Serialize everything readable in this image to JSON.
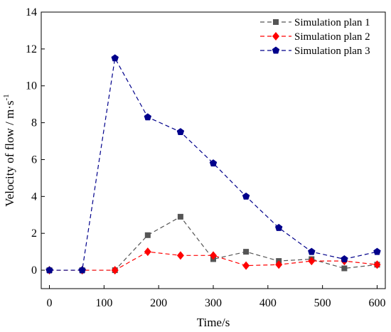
{
  "chart_data": {
    "type": "line",
    "title": "",
    "xlabel": "Time/s",
    "ylabel_parts": {
      "main": "Velocity of  flow / m·s",
      "sup": "-1"
    },
    "xlim": [
      -15,
      615
    ],
    "ylim": [
      -1,
      14
    ],
    "xticks": [
      0,
      100,
      200,
      300,
      400,
      500,
      600
    ],
    "yticks": [
      0,
      2,
      4,
      6,
      8,
      10,
      12,
      14
    ],
    "legend_position": "top-right",
    "series": [
      {
        "name": "Simulation plan 1",
        "color": "#555555",
        "marker": "square",
        "x": [
          0,
          60,
          120,
          180,
          240,
          300,
          360,
          420,
          480,
          540,
          600
        ],
        "y": [
          0,
          0,
          0,
          1.9,
          2.9,
          0.6,
          1.0,
          0.5,
          0.6,
          0.1,
          0.3
        ]
      },
      {
        "name": "Simulation plan 2",
        "color": "#ff0000",
        "marker": "diamond",
        "x": [
          0,
          60,
          120,
          180,
          240,
          300,
          360,
          420,
          480,
          540,
          600
        ],
        "y": [
          0,
          0,
          0,
          1.0,
          0.8,
          0.8,
          0.25,
          0.3,
          0.5,
          0.5,
          0.3
        ]
      },
      {
        "name": "Simulation plan 3",
        "color": "#00008b",
        "marker": "pentagon",
        "x": [
          0,
          60,
          120,
          180,
          240,
          300,
          360,
          420,
          480,
          540,
          600
        ],
        "y": [
          0,
          0,
          11.5,
          8.3,
          7.5,
          5.8,
          4.0,
          2.3,
          1.0,
          0.6,
          1.0
        ]
      }
    ]
  }
}
